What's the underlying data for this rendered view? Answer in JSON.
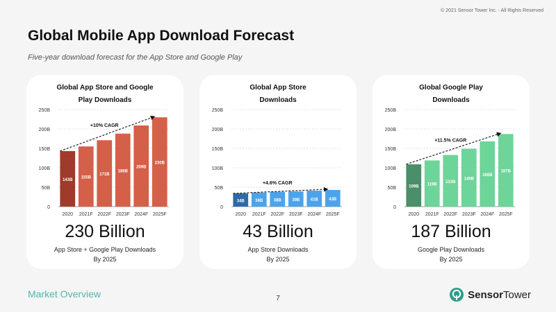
{
  "copyright": "© 2021 Sensor Tower Inc. - All Rights Reserved",
  "title": "Global Mobile App Download Forecast",
  "subtitle": "Five-year download forecast for the App Store and Google Play",
  "footer": {
    "section": "Market Overview",
    "page": "7",
    "brand_bold": "Sensor",
    "brand_rest": "Tower",
    "brand_color": "#2e9c8a"
  },
  "cards": [
    {
      "title_line1": "Global App Store and Google",
      "title_line2": "Play Downloads",
      "big": "230 Billion",
      "caption_line1": "App Store + Google Play Downloads",
      "caption_line2": "By 2025"
    },
    {
      "title_line1": "Global App Store",
      "title_line2": "Downloads",
      "big": "43 Billion",
      "caption_line1": "App Store Downloads",
      "caption_line2": "By 2025"
    },
    {
      "title_line1": "Global Google Play",
      "title_line2": "Downloads",
      "big": "187 Billion",
      "caption_line1": "Google Play Downloads",
      "caption_line2": "By 2025"
    }
  ],
  "chart_data": [
    {
      "type": "bar",
      "title": "Global App Store and Google Play Downloads",
      "categories": [
        "2020",
        "2021F",
        "2022F",
        "2023F",
        "2024F",
        "2025F"
      ],
      "values": [
        143,
        155,
        171,
        188,
        209,
        230
      ],
      "labels": [
        "143B",
        "155B",
        "171B",
        "188B",
        "209B",
        "230B"
      ],
      "yticks": [
        "0",
        "50B",
        "100B",
        "150B",
        "200B",
        "250B"
      ],
      "ylim": [
        0,
        250
      ],
      "annotation": "+10% CAGR",
      "base_color": "#a03a2a",
      "color": "#d4604a"
    },
    {
      "type": "bar",
      "title": "Global App Store Downloads",
      "categories": [
        "2020",
        "2021F",
        "2022F",
        "2023F",
        "2024F",
        "2025F"
      ],
      "values": [
        34,
        36,
        38,
        39,
        41,
        43
      ],
      "labels": [
        "34B",
        "36B",
        "38B",
        "39B",
        "41B",
        "43B"
      ],
      "yticks": [
        "0",
        "50B",
        "100B",
        "150B",
        "200B",
        "250B"
      ],
      "ylim": [
        0,
        250
      ],
      "annotation": "+4.6% CAGR",
      "base_color": "#2e6aa8",
      "color": "#4da3ea"
    },
    {
      "type": "bar",
      "title": "Global Google Play Downloads",
      "categories": [
        "2020",
        "2021F",
        "2022F",
        "2023F",
        "2024F",
        "2025F"
      ],
      "values": [
        109,
        119,
        133,
        149,
        168,
        187
      ],
      "labels": [
        "109B",
        "119B",
        "133B",
        "149B",
        "168B",
        "187B"
      ],
      "yticks": [
        "0",
        "50B",
        "100B",
        "150B",
        "200B",
        "250B"
      ],
      "ylim": [
        0,
        250
      ],
      "annotation": "+11.5% CAGR",
      "base_color": "#4a8f6a",
      "color": "#6dd49a"
    }
  ]
}
